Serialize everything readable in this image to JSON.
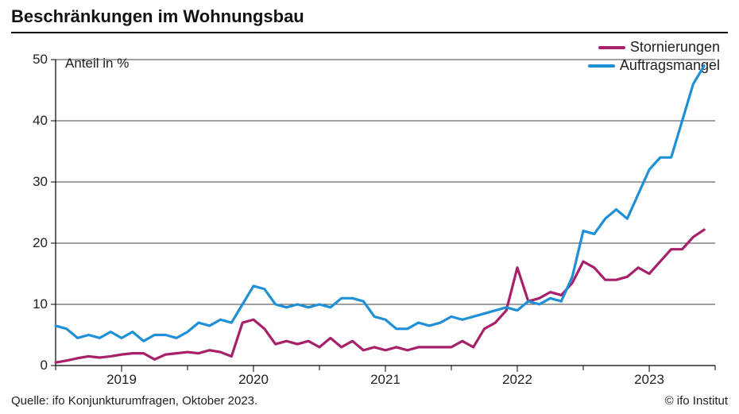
{
  "chart": {
    "type": "line",
    "title": "Beschränkungen im Wohnungsbau",
    "y_axis_title": "Anteil in %",
    "title_fontsize": 22,
    "label_fontsize": 17,
    "legend_fontsize": 18,
    "background_color": "#ffffff",
    "grid_color": "#000000",
    "axis_color": "#000000",
    "ylim": [
      0,
      50
    ],
    "ytick_step": 10,
    "yticks": [
      0,
      10,
      20,
      30,
      40,
      50
    ],
    "xlim": [
      0,
      60
    ],
    "xticks": [
      {
        "pos": 6,
        "label": "2019"
      },
      {
        "pos": 18,
        "label": "2020"
      },
      {
        "pos": 30,
        "label": "2021"
      },
      {
        "pos": 42,
        "label": "2022"
      },
      {
        "pos": 54,
        "label": "2023"
      }
    ],
    "xtick_minor": [
      0,
      12,
      24,
      36,
      48,
      60
    ],
    "line_width": 3.2,
    "series": [
      {
        "name": "Stornierungen",
        "color": "#a6206a",
        "data": [
          0.5,
          0.8,
          1.2,
          1.5,
          1.3,
          1.5,
          1.8,
          2.0,
          2.0,
          1.0,
          1.8,
          2.0,
          2.2,
          2.0,
          2.5,
          2.2,
          1.5,
          7.0,
          7.5,
          6.0,
          3.5,
          4.0,
          3.5,
          4.0,
          3.0,
          4.5,
          3.0,
          4.0,
          2.5,
          3.0,
          2.5,
          3.0,
          2.5,
          3.0,
          3.0,
          3.0,
          3.0,
          4.0,
          3.0,
          6.0,
          7.0,
          9.0,
          16.0,
          10.5,
          11.0,
          12.0,
          11.5,
          13.5,
          17.0,
          16.0,
          14.0,
          14.0,
          14.5,
          16.0,
          15.0,
          17.0,
          19.0,
          19.0,
          21.0,
          22.2
        ]
      },
      {
        "name": "Auftragsmangel",
        "color": "#1f8fd6",
        "data": [
          6.5,
          6.0,
          4.5,
          5.0,
          4.5,
          5.5,
          4.5,
          5.5,
          4.0,
          5.0,
          5.0,
          4.5,
          5.5,
          7.0,
          6.5,
          7.5,
          7.0,
          10.0,
          13.0,
          12.5,
          10.0,
          9.5,
          10.0,
          9.5,
          10.0,
          9.5,
          11.0,
          11.0,
          10.5,
          8.0,
          7.5,
          6.0,
          6.0,
          7.0,
          6.5,
          7.0,
          8.0,
          7.5,
          8.0,
          8.5,
          9.0,
          9.5,
          9.0,
          10.5,
          10.0,
          11.0,
          10.5,
          14.5,
          22.0,
          21.5,
          24.0,
          25.5,
          24.0,
          28.0,
          32.0,
          34.0,
          34.0,
          40.0,
          46.0,
          49.0
        ]
      }
    ],
    "legend_position": "top-right",
    "source_text": "Quelle: ifo Konjunkturumfragen, Oktober 2023.",
    "attribution_text": "© ifo Institut"
  }
}
